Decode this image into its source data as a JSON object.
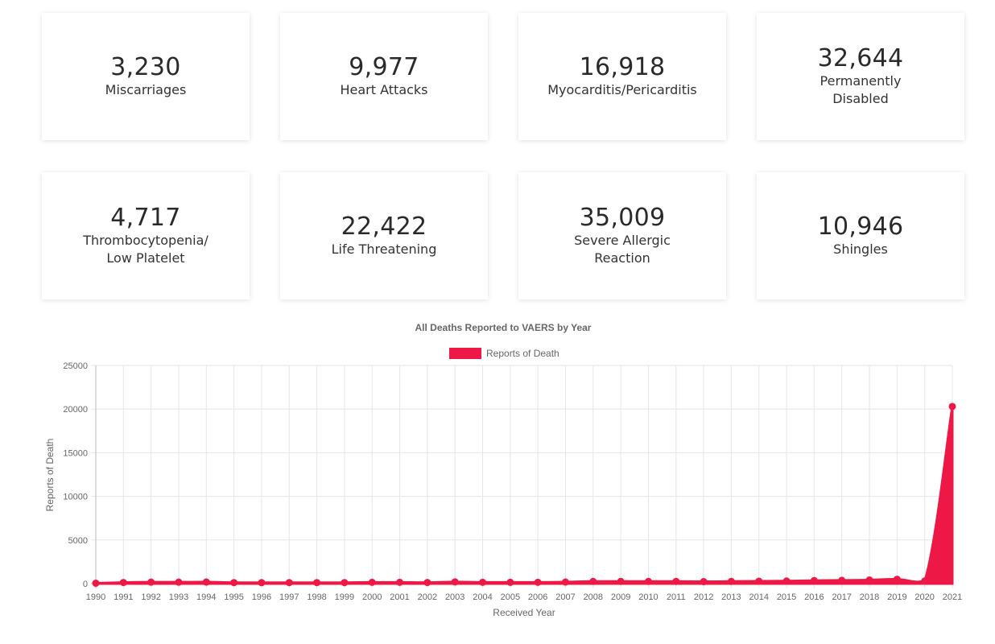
{
  "stats": [
    {
      "value": "3,230",
      "label": "Miscarriages"
    },
    {
      "value": "9,977",
      "label": "Heart Attacks"
    },
    {
      "value": "16,918",
      "label": "Myocarditis/Pericarditis"
    },
    {
      "value": "32,644",
      "label": "Permanently Disabled"
    },
    {
      "value": "4,717",
      "label": "Thrombocytopenia/ Low Platelet"
    },
    {
      "value": "22,422",
      "label": "Life Threatening"
    },
    {
      "value": "35,009",
      "label": "Severe Allergic Reaction"
    },
    {
      "value": "10,946",
      "label": "Shingles"
    }
  ],
  "chart_data": {
    "type": "area",
    "title": "All Deaths Reported to VAERS by Year",
    "xlabel": "Received Year",
    "ylabel": "Reports of Death",
    "ylim": [
      0,
      25000
    ],
    "yticks": [
      0,
      5000,
      10000,
      15000,
      20000,
      25000
    ],
    "grid": true,
    "legend_position": "top",
    "color": "#ee1846",
    "categories": [
      "1990",
      "1991",
      "1992",
      "1993",
      "1994",
      "1995",
      "1996",
      "1997",
      "1998",
      "1999",
      "2000",
      "2001",
      "2002",
      "2003",
      "2004",
      "2005",
      "2006",
      "2007",
      "2008",
      "2009",
      "2010",
      "2011",
      "2012",
      "2013",
      "2014",
      "2015",
      "2016",
      "2017",
      "2018",
      "2019",
      "2020",
      "2021"
    ],
    "series": [
      {
        "name": "Reports of Death",
        "values": [
          50,
          130,
          170,
          170,
          180,
          120,
          110,
          120,
          120,
          120,
          150,
          150,
          130,
          200,
          150,
          150,
          150,
          180,
          250,
          250,
          250,
          250,
          230,
          250,
          280,
          300,
          350,
          380,
          420,
          500,
          300,
          20300
        ]
      }
    ]
  }
}
